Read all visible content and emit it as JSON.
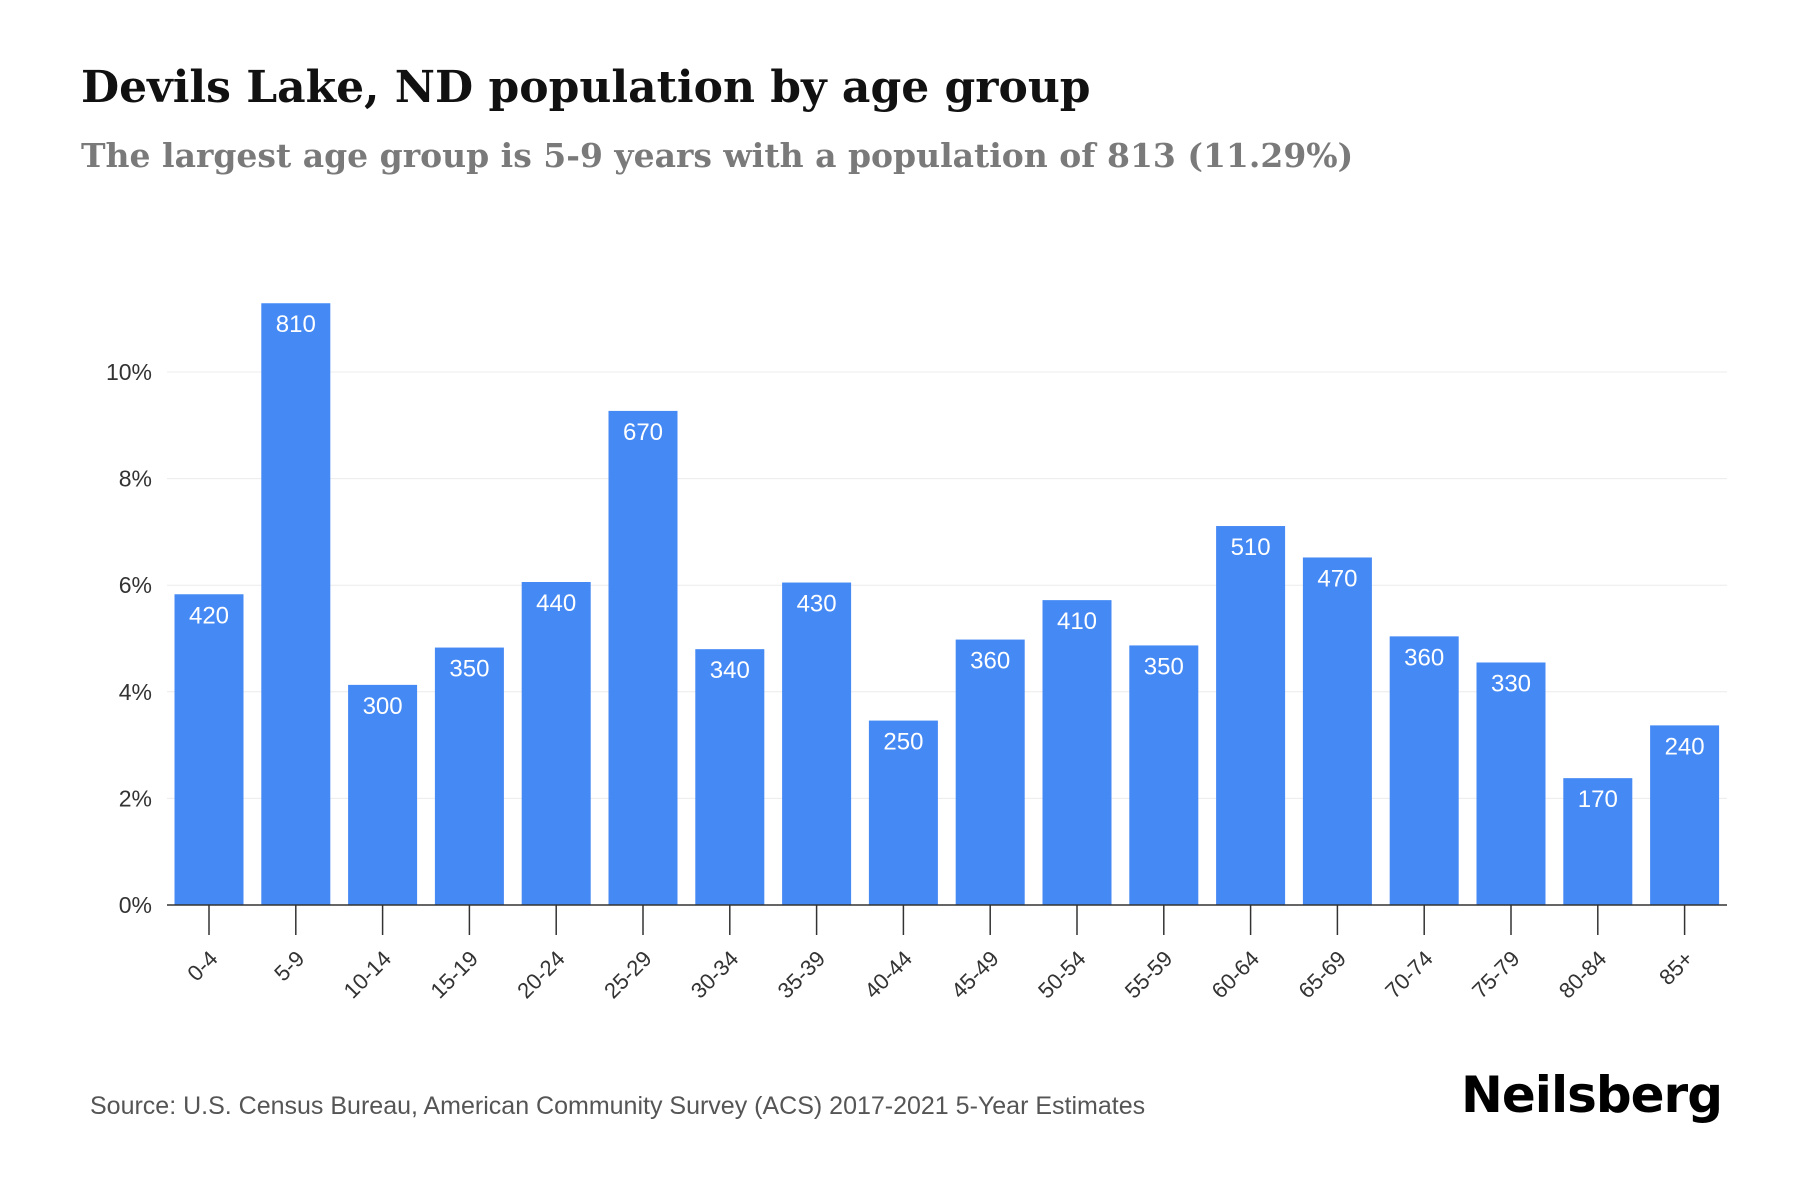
{
  "chart_data": {
    "type": "bar",
    "title": "Devils Lake, ND population by age group",
    "subtitle": "The largest age group is 5-9 years with a population of 813 (11.29%)",
    "categories": [
      "0-4",
      "5-9",
      "10-14",
      "15-19",
      "20-24",
      "25-29",
      "30-34",
      "35-39",
      "40-44",
      "45-49",
      "50-54",
      "55-59",
      "60-64",
      "65-69",
      "70-74",
      "75-79",
      "80-84",
      "85+"
    ],
    "values": [
      5.83,
      11.29,
      4.13,
      4.83,
      6.06,
      9.27,
      4.8,
      6.05,
      3.46,
      4.98,
      5.72,
      4.87,
      7.11,
      6.52,
      5.04,
      4.55,
      2.38,
      3.37
    ],
    "labels": [
      "420",
      "810",
      "300",
      "350",
      "440",
      "670",
      "340",
      "430",
      "250",
      "360",
      "410",
      "350",
      "510",
      "470",
      "360",
      "330",
      "170",
      "240"
    ],
    "yticks": [
      "0%",
      "2%",
      "4%",
      "6%",
      "8%",
      "10%"
    ],
    "ytick_values": [
      0,
      2,
      4,
      6,
      8,
      10
    ],
    "ylim": [
      0,
      12
    ],
    "ylabel": "",
    "xlabel": "",
    "grid": true,
    "bar_color": "#4589f5"
  },
  "source": "Source: U.S. Census Bureau, American Community Survey (ACS) 2017-2021 5-Year Estimates",
  "brand": "Neilsberg"
}
